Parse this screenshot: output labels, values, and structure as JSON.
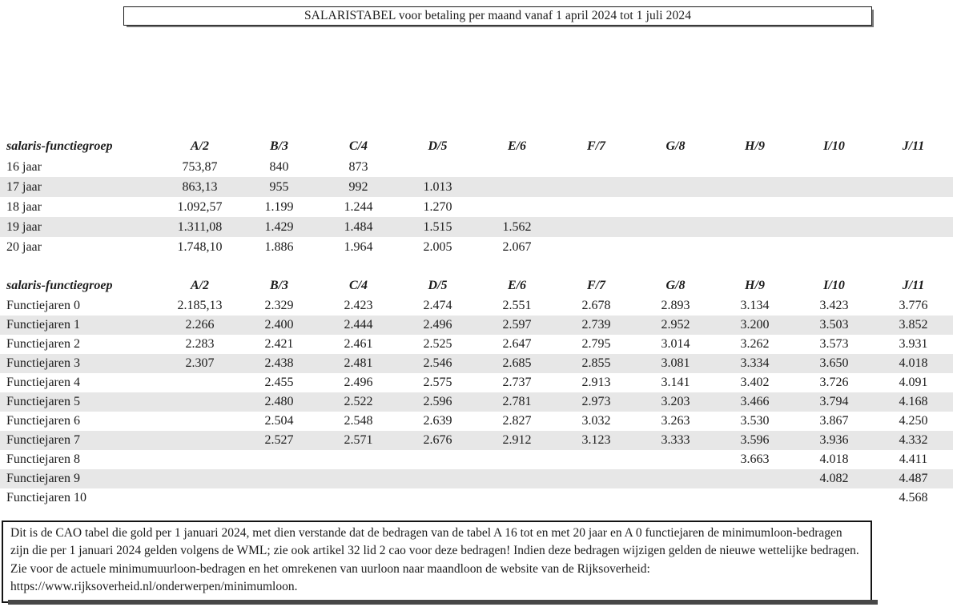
{
  "document": {
    "title": "SALARISTABEL voor betaling per maand vanaf 1 april 2024 tot 1 juli 2024",
    "footer_note": "Dit is de CAO tabel die gold per 1 januari 2024, met dien verstande dat de bedragen van de tabel A 16 tot en met 20 jaar en A 0 functiejaren de minimumloon-bedragen zijn die per 1 januari 2024 gelden volgens de WML; zie ook artikel 32 lid 2 cao voor deze bedragen! Indien deze bedragen wijzigen gelden de nieuwe wettelijke bedragen. Zie voor de actuele minimumuurloon-bedragen en het omrekenen van uurloon naar maandloon de website van de Rijksoverheid: https://www.rijksoverheid.nl/onderwerpen/minimumloon."
  },
  "columns": {
    "label_header": "salaris-functiegroep",
    "groups": [
      "A/2",
      "B/3",
      "C/4",
      "D/5",
      "E/6",
      "F/7",
      "G/8",
      "H/9",
      "I/10",
      "J/11"
    ]
  },
  "age_table": {
    "rows": [
      {
        "label": "16 jaar",
        "values": [
          "753,87",
          "840",
          "873",
          "",
          "",
          "",
          "",
          "",
          "",
          ""
        ]
      },
      {
        "label": "17 jaar",
        "values": [
          "863,13",
          "955",
          "992",
          "1.013",
          "",
          "",
          "",
          "",
          "",
          ""
        ]
      },
      {
        "label": "18 jaar",
        "values": [
          "1.092,57",
          "1.199",
          "1.244",
          "1.270",
          "",
          "",
          "",
          "",
          "",
          ""
        ]
      },
      {
        "label": "19 jaar",
        "values": [
          "1.311,08",
          "1.429",
          "1.484",
          "1.515",
          "1.562",
          "",
          "",
          "",
          "",
          ""
        ]
      },
      {
        "label": "20 jaar",
        "values": [
          "1.748,10",
          "1.886",
          "1.964",
          "2.005",
          "2.067",
          "",
          "",
          "",
          "",
          ""
        ]
      }
    ]
  },
  "function_table": {
    "rows": [
      {
        "label": "Functiejaren 0",
        "values": [
          "2.185,13",
          "2.329",
          "2.423",
          "2.474",
          "2.551",
          "2.678",
          "2.893",
          "3.134",
          "3.423",
          "3.776"
        ]
      },
      {
        "label": "Functiejaren 1",
        "values": [
          "2.266",
          "2.400",
          "2.444",
          "2.496",
          "2.597",
          "2.739",
          "2.952",
          "3.200",
          "3.503",
          "3.852"
        ]
      },
      {
        "label": "Functiejaren 2",
        "values": [
          "2.283",
          "2.421",
          "2.461",
          "2.525",
          "2.647",
          "2.795",
          "3.014",
          "3.262",
          "3.573",
          "3.931"
        ]
      },
      {
        "label": "Functiejaren 3",
        "values": [
          "2.307",
          "2.438",
          "2.481",
          "2.546",
          "2.685",
          "2.855",
          "3.081",
          "3.334",
          "3.650",
          "4.018"
        ]
      },
      {
        "label": "Functiejaren 4",
        "values": [
          "",
          "2.455",
          "2.496",
          "2.575",
          "2.737",
          "2.913",
          "3.141",
          "3.402",
          "3.726",
          "4.091"
        ]
      },
      {
        "label": "Functiejaren 5",
        "values": [
          "",
          "2.480",
          "2.522",
          "2.596",
          "2.781",
          "2.973",
          "3.203",
          "3.466",
          "3.794",
          "4.168"
        ]
      },
      {
        "label": "Functiejaren 6",
        "values": [
          "",
          "2.504",
          "2.548",
          "2.639",
          "2.827",
          "3.032",
          "3.263",
          "3.530",
          "3.867",
          "4.250"
        ]
      },
      {
        "label": "Functiejaren 7",
        "values": [
          "",
          "2.527",
          "2.571",
          "2.676",
          "2.912",
          "3.123",
          "3.333",
          "3.596",
          "3.936",
          "4.332"
        ]
      },
      {
        "label": "Functiejaren 8",
        "values": [
          "",
          "",
          "",
          "",
          "",
          "",
          "",
          "3.663",
          "4.018",
          "4.411"
        ]
      },
      {
        "label": "Functiejaren 9",
        "values": [
          "",
          "",
          "",
          "",
          "",
          "",
          "",
          "",
          "4.082",
          "4.487"
        ]
      },
      {
        "label": "Functiejaren 10",
        "values": [
          "",
          "",
          "",
          "",
          "",
          "",
          "",
          "",
          "",
          "4.568"
        ]
      }
    ]
  },
  "colors": {
    "stripe": "#e7e7e7",
    "border": "#1a1a1a",
    "shadow": "#474747"
  }
}
